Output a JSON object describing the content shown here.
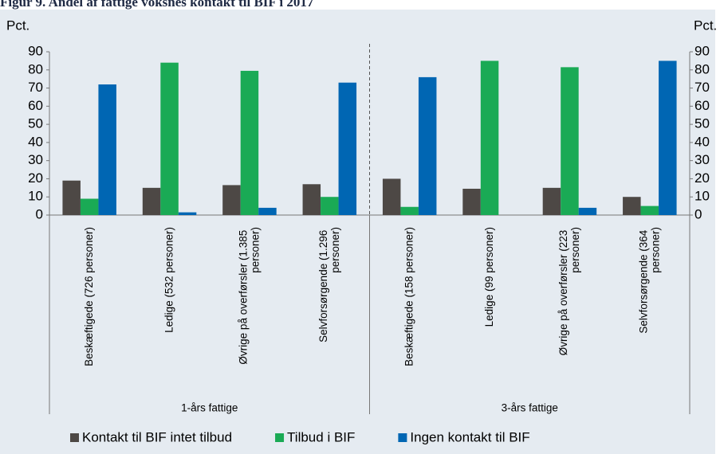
{
  "chart_data": {
    "type": "bar",
    "title": "Figur 9. Andel af fattige voksnes kontakt til BIF i 2017",
    "y_label": "Pct.",
    "y2_label": "Pct.",
    "categories": [
      "Beskæftigede (726 personer)",
      "Ledige (532 personer)",
      "Øvrige på overførsler (1.385 personer)",
      "Selvforsørgende (1.296 personer)",
      "Beskæftigede (158 personer)",
      "Ledige (99 personer)",
      "Øvrige på overførsler (223 personer)",
      "Selvforsørgende (364 personer)"
    ],
    "groups": [
      "1-års fattige",
      "3-års fattige"
    ],
    "series": [
      {
        "name": "Kontakt til BIF intet tilbud",
        "color": "#4d4845",
        "values": [
          19,
          15,
          16.5,
          17,
          20,
          14.5,
          15,
          10
        ]
      },
      {
        "name": "Tilbud i BIF",
        "color": "#1aaa55",
        "values": [
          9,
          84,
          79.5,
          10,
          4.5,
          85,
          81.5,
          5
        ]
      },
      {
        "name": "Ingen kontakt til BIF",
        "color": "#0066b3",
        "values": [
          72,
          1.5,
          4,
          73,
          76,
          0,
          4,
          85
        ]
      }
    ],
    "ylim": [
      0,
      90
    ],
    "yticks": [
      0,
      10,
      20,
      30,
      40,
      50,
      60,
      70,
      80,
      90
    ],
    "y2lim": [
      0,
      90
    ],
    "y2ticks": [
      0,
      10,
      20,
      30,
      40,
      50,
      60,
      70,
      80,
      90
    ],
    "legend": "bottom"
  }
}
